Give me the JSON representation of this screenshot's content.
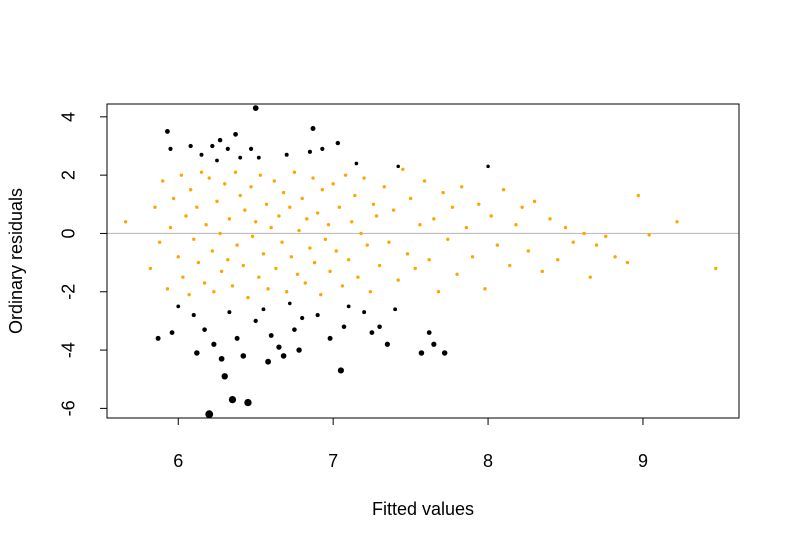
{
  "chart_data": {
    "type": "scatter",
    "x_label": "Fitted values",
    "y_label": "Ordinary residuals",
    "xlim": [
      5.54,
      9.62
    ],
    "ylim": [
      -6.33,
      4.44
    ],
    "xticks": [
      6,
      7,
      8,
      9
    ],
    "yticks": [
      -6,
      -4,
      -2,
      0,
      2,
      4
    ],
    "hline": 0,
    "hline_color": "#bebebe",
    "series": [
      {
        "color": "#ffa500",
        "x": [
          5.66,
          5.82,
          5.85,
          5.88,
          5.9,
          5.93,
          5.95,
          5.97,
          6.0,
          6.02,
          6.03,
          6.05,
          6.07,
          6.08,
          6.1,
          6.12,
          6.13,
          6.15,
          6.17,
          6.18,
          6.2,
          6.22,
          6.23,
          6.25,
          6.27,
          6.28,
          6.3,
          6.32,
          6.33,
          6.35,
          6.37,
          6.38,
          6.4,
          6.42,
          6.43,
          6.45,
          6.47,
          6.48,
          6.5,
          6.52,
          6.53,
          6.55,
          6.57,
          6.58,
          6.6,
          6.62,
          6.63,
          6.65,
          6.67,
          6.68,
          6.7,
          6.72,
          6.73,
          6.75,
          6.77,
          6.78,
          6.8,
          6.82,
          6.83,
          6.85,
          6.87,
          6.88,
          6.9,
          6.92,
          6.93,
          6.95,
          6.97,
          6.98,
          7.0,
          7.02,
          7.04,
          7.06,
          7.08,
          7.1,
          7.12,
          7.14,
          7.16,
          7.18,
          7.2,
          7.22,
          7.24,
          7.26,
          7.28,
          7.3,
          7.33,
          7.36,
          7.39,
          7.42,
          7.45,
          7.48,
          7.5,
          7.53,
          7.56,
          7.59,
          7.62,
          7.65,
          7.68,
          7.71,
          7.74,
          7.77,
          7.8,
          7.83,
          7.86,
          7.9,
          7.94,
          7.98,
          8.02,
          8.06,
          8.1,
          8.14,
          8.18,
          8.22,
          8.26,
          8.3,
          8.35,
          8.4,
          8.45,
          8.5,
          8.55,
          8.62,
          8.66,
          8.7,
          8.76,
          8.82,
          8.9,
          8.97,
          9.04,
          9.22,
          9.47
        ],
        "values": [
          0.4,
          -1.2,
          0.9,
          -0.3,
          1.8,
          -1.9,
          0.2,
          1.2,
          -0.8,
          2.0,
          -1.5,
          0.6,
          -2.1,
          1.5,
          -0.2,
          0.9,
          -1.0,
          2.1,
          -1.7,
          0.3,
          1.9,
          -0.6,
          -2.0,
          1.1,
          0.0,
          -1.3,
          1.7,
          -0.9,
          0.5,
          -1.8,
          2.1,
          -0.4,
          1.3,
          -1.1,
          0.8,
          -2.2,
          1.6,
          -0.1,
          0.4,
          -1.5,
          2.0,
          -0.7,
          1.0,
          -1.9,
          0.2,
          1.8,
          -1.2,
          0.6,
          -0.3,
          1.4,
          -2.0,
          0.9,
          -0.8,
          2.1,
          -1.4,
          0.1,
          1.2,
          -1.7,
          0.5,
          -0.5,
          1.9,
          -1.0,
          0.7,
          -2.1,
          1.5,
          -0.2,
          0.3,
          -1.3,
          1.7,
          -0.6,
          0.9,
          -1.8,
          2.0,
          -0.9,
          0.4,
          1.3,
          -1.5,
          0.0,
          1.9,
          -0.4,
          -2.0,
          1.0,
          0.6,
          -1.1,
          1.6,
          -0.3,
          0.8,
          -1.6,
          2.2,
          -0.7,
          1.2,
          -1.2,
          0.3,
          1.8,
          -0.9,
          0.5,
          -2.0,
          1.4,
          -0.2,
          0.9,
          -1.4,
          1.6,
          0.2,
          -0.8,
          1.0,
          -1.9,
          0.6,
          -0.4,
          1.5,
          -1.1,
          0.3,
          0.9,
          -0.6,
          1.1,
          -1.3,
          0.5,
          -0.9,
          0.2,
          -0.3,
          0.0,
          -1.5,
          -0.4,
          -0.1,
          -0.8,
          -1.0,
          1.3,
          -0.05,
          0.4,
          -1.2
        ]
      },
      {
        "color": "#000000",
        "x": [
          5.87,
          5.93,
          5.95,
          5.96,
          6.0,
          6.08,
          6.1,
          6.12,
          6.15,
          6.17,
          6.2,
          6.22,
          6.23,
          6.25,
          6.27,
          6.28,
          6.3,
          6.32,
          6.33,
          6.35,
          6.37,
          6.38,
          6.4,
          6.42,
          6.45,
          6.47,
          6.5,
          6.5,
          6.52,
          6.55,
          6.58,
          6.6,
          6.65,
          6.68,
          6.7,
          6.72,
          6.75,
          6.78,
          6.8,
          6.85,
          6.87,
          6.9,
          6.93,
          6.98,
          7.03,
          7.05,
          7.07,
          7.1,
          7.15,
          7.2,
          7.25,
          7.3,
          7.35,
          7.42,
          7.57,
          7.62,
          7.65,
          7.72,
          8.0,
          7.4
        ],
        "values": [
          -3.6,
          3.5,
          2.9,
          -3.4,
          -2.5,
          3.0,
          -2.8,
          -4.1,
          2.7,
          -3.3,
          -6.2,
          3.0,
          -3.8,
          2.5,
          3.2,
          -4.3,
          -4.9,
          2.9,
          -2.7,
          -5.7,
          3.4,
          -3.6,
          2.6,
          -4.2,
          -5.8,
          2.9,
          4.3,
          -3.0,
          2.6,
          -2.6,
          -4.4,
          -3.5,
          -3.9,
          -4.2,
          2.7,
          -2.4,
          -3.3,
          -4.0,
          -2.9,
          2.8,
          3.6,
          -2.8,
          2.9,
          -3.6,
          3.1,
          -4.7,
          -3.2,
          -2.5,
          2.4,
          -2.7,
          -3.4,
          -3.2,
          -3.8,
          2.3,
          -4.1,
          -3.4,
          -3.8,
          -4.1,
          2.3,
          -2.6
        ]
      }
    ]
  }
}
